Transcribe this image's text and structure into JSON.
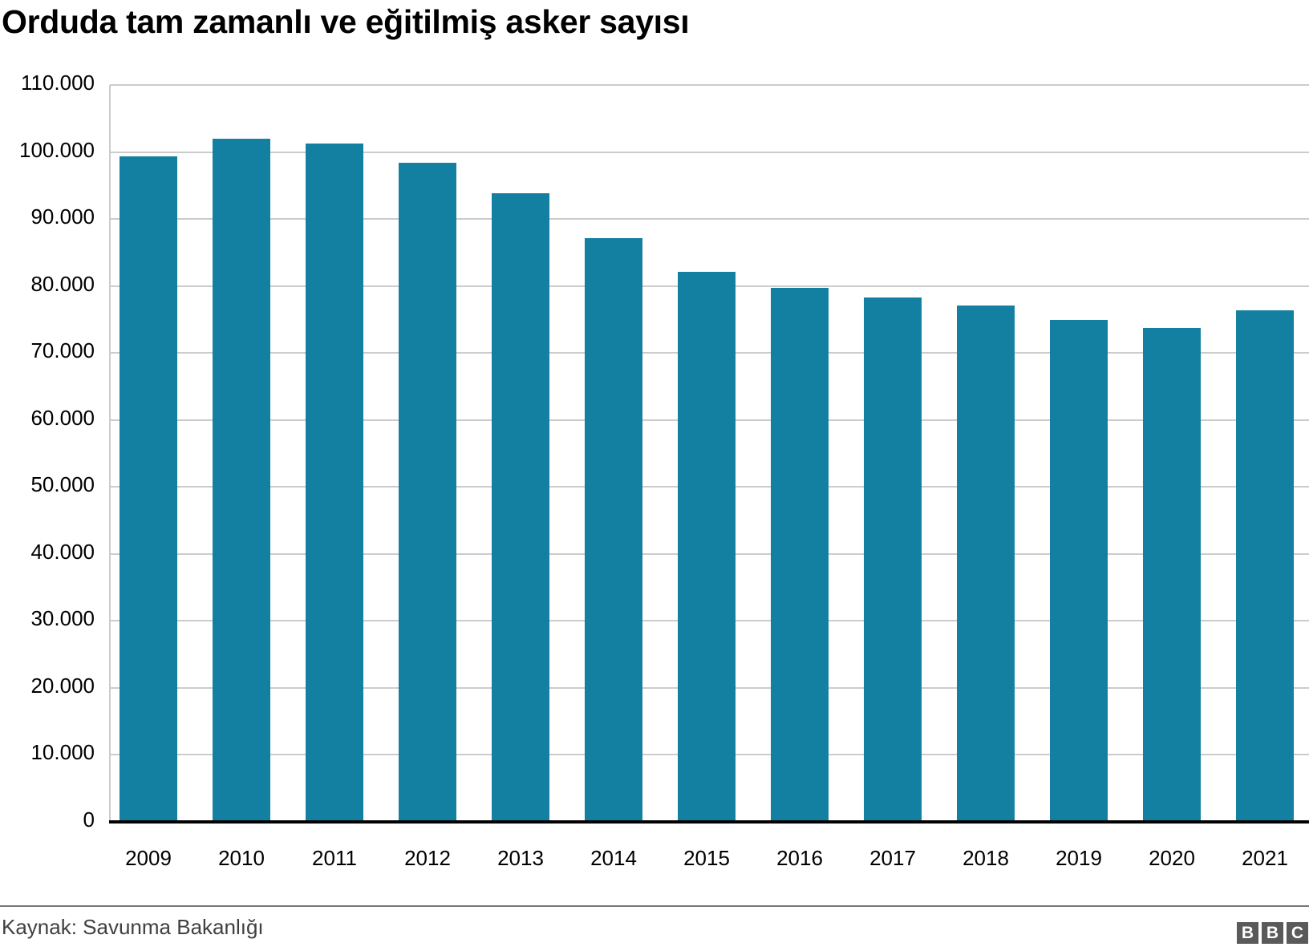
{
  "title": "Orduda tam zamanlı ve eğitilmiş asker sayısı",
  "source": "Kaynak: Savunma Bakanlığı",
  "logo": [
    "B",
    "B",
    "C"
  ],
  "colors": {
    "bar": "#1380A1",
    "grid": "#cccccc",
    "baseline": "#000000"
  },
  "y_ticks": [
    "0",
    "10.000",
    "20.000",
    "30.000",
    "40.000",
    "50.000",
    "60.000",
    "70.000",
    "80.000",
    "90.000",
    "100.000",
    "110.000"
  ],
  "chart_data": {
    "type": "bar",
    "title": "Orduda tam zamanlı ve eğitilmiş asker sayısı",
    "xlabel": "",
    "ylabel": "",
    "categories": [
      "2009",
      "2010",
      "2011",
      "2012",
      "2013",
      "2014",
      "2015",
      "2016",
      "2017",
      "2018",
      "2019",
      "2020",
      "2021"
    ],
    "values": [
      99400,
      102000,
      101300,
      98400,
      93800,
      87100,
      82100,
      79700,
      78300,
      77100,
      74900,
      73700,
      76400
    ],
    "ylim": [
      0,
      110000
    ],
    "y_tick_step": 10000,
    "grid": true,
    "legend": null,
    "source": "Kaynak: Savunma Bakanlığı"
  }
}
